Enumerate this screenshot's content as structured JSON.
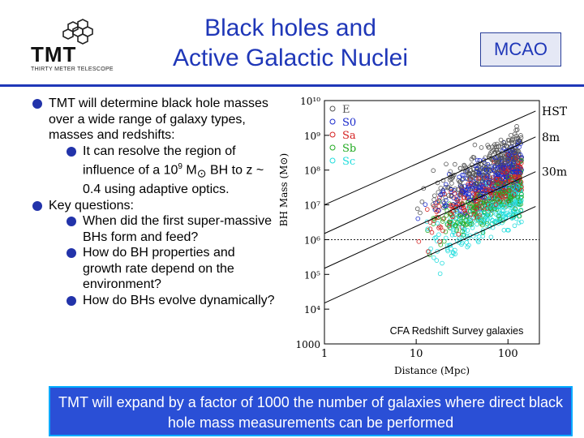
{
  "logo": {
    "name": "TMT",
    "subtitle": "THIRTY METER TELESCOPE"
  },
  "title": {
    "line1": "Black holes and",
    "line2": "Active Galactic Nuclei"
  },
  "badge": "MCAO",
  "bullets": {
    "b1": "TMT will determine black hole masses over a wide range of galaxy types, masses and redshifts:",
    "b1a_pre": "It can resolve the region of influence of a 10",
    "b1a_exp": "9",
    "b1a_mid": " M",
    "b1a_sun": "⊙",
    "b1a_post": " BH to z ~ 0.4 using adaptive optics.",
    "b2": "Key questions:",
    "b2a": "When did the first super-massive BHs form and feed?",
    "b2b": "How do BH properties and growth rate depend on the environment?",
    "b2c": "How do BHs evolve dynamically?"
  },
  "chart_data": {
    "type": "scatter",
    "xlabel": "Distance (Mpc)",
    "ylabel": "BH Mass (M⊙)",
    "xscale": "log",
    "yscale": "log",
    "xlim": [
      1,
      220
    ],
    "ylim": [
      1000,
      10000000000
    ],
    "x_ticks": [
      "1",
      "10",
      "100"
    ],
    "y_ticks": [
      "1000",
      "10⁴",
      "10⁵",
      "10⁶",
      "10⁷",
      "10⁸",
      "10⁹",
      "10¹⁰"
    ],
    "series": [
      {
        "name": "E",
        "color": "#555555"
      },
      {
        "name": "S0",
        "color": "#1a2acc"
      },
      {
        "name": "Sa",
        "color": "#d42020"
      },
      {
        "name": "Sb",
        "color": "#22aa22"
      },
      {
        "name": "Sc",
        "color": "#22dddd"
      }
    ],
    "lines": [
      {
        "label": "HST",
        "start": [
          1,
          10000000
        ],
        "end": [
          200,
          5000000000
        ]
      },
      {
        "label": "8m",
        "start": [
          1,
          1500000
        ],
        "end": [
          200,
          900000000
        ]
      },
      {
        "label": "30m",
        "start": [
          1,
          150000
        ],
        "end": [
          200,
          90000000
        ]
      },
      {
        "label": "",
        "start": [
          1,
          15000
        ],
        "end": [
          200,
          9000000
        ]
      }
    ],
    "hline_y": 1000000,
    "annotation": "CFA Redshift Survey galaxies",
    "legend": "top-left"
  },
  "footer": "TMT will expand by a factor of 1000 the number of galaxies where direct black hole mass measurements can be performed",
  "colors": {
    "title": "#1f37b8",
    "footer_bg": "#2a4fd6",
    "footer_border": "#00aaff"
  }
}
